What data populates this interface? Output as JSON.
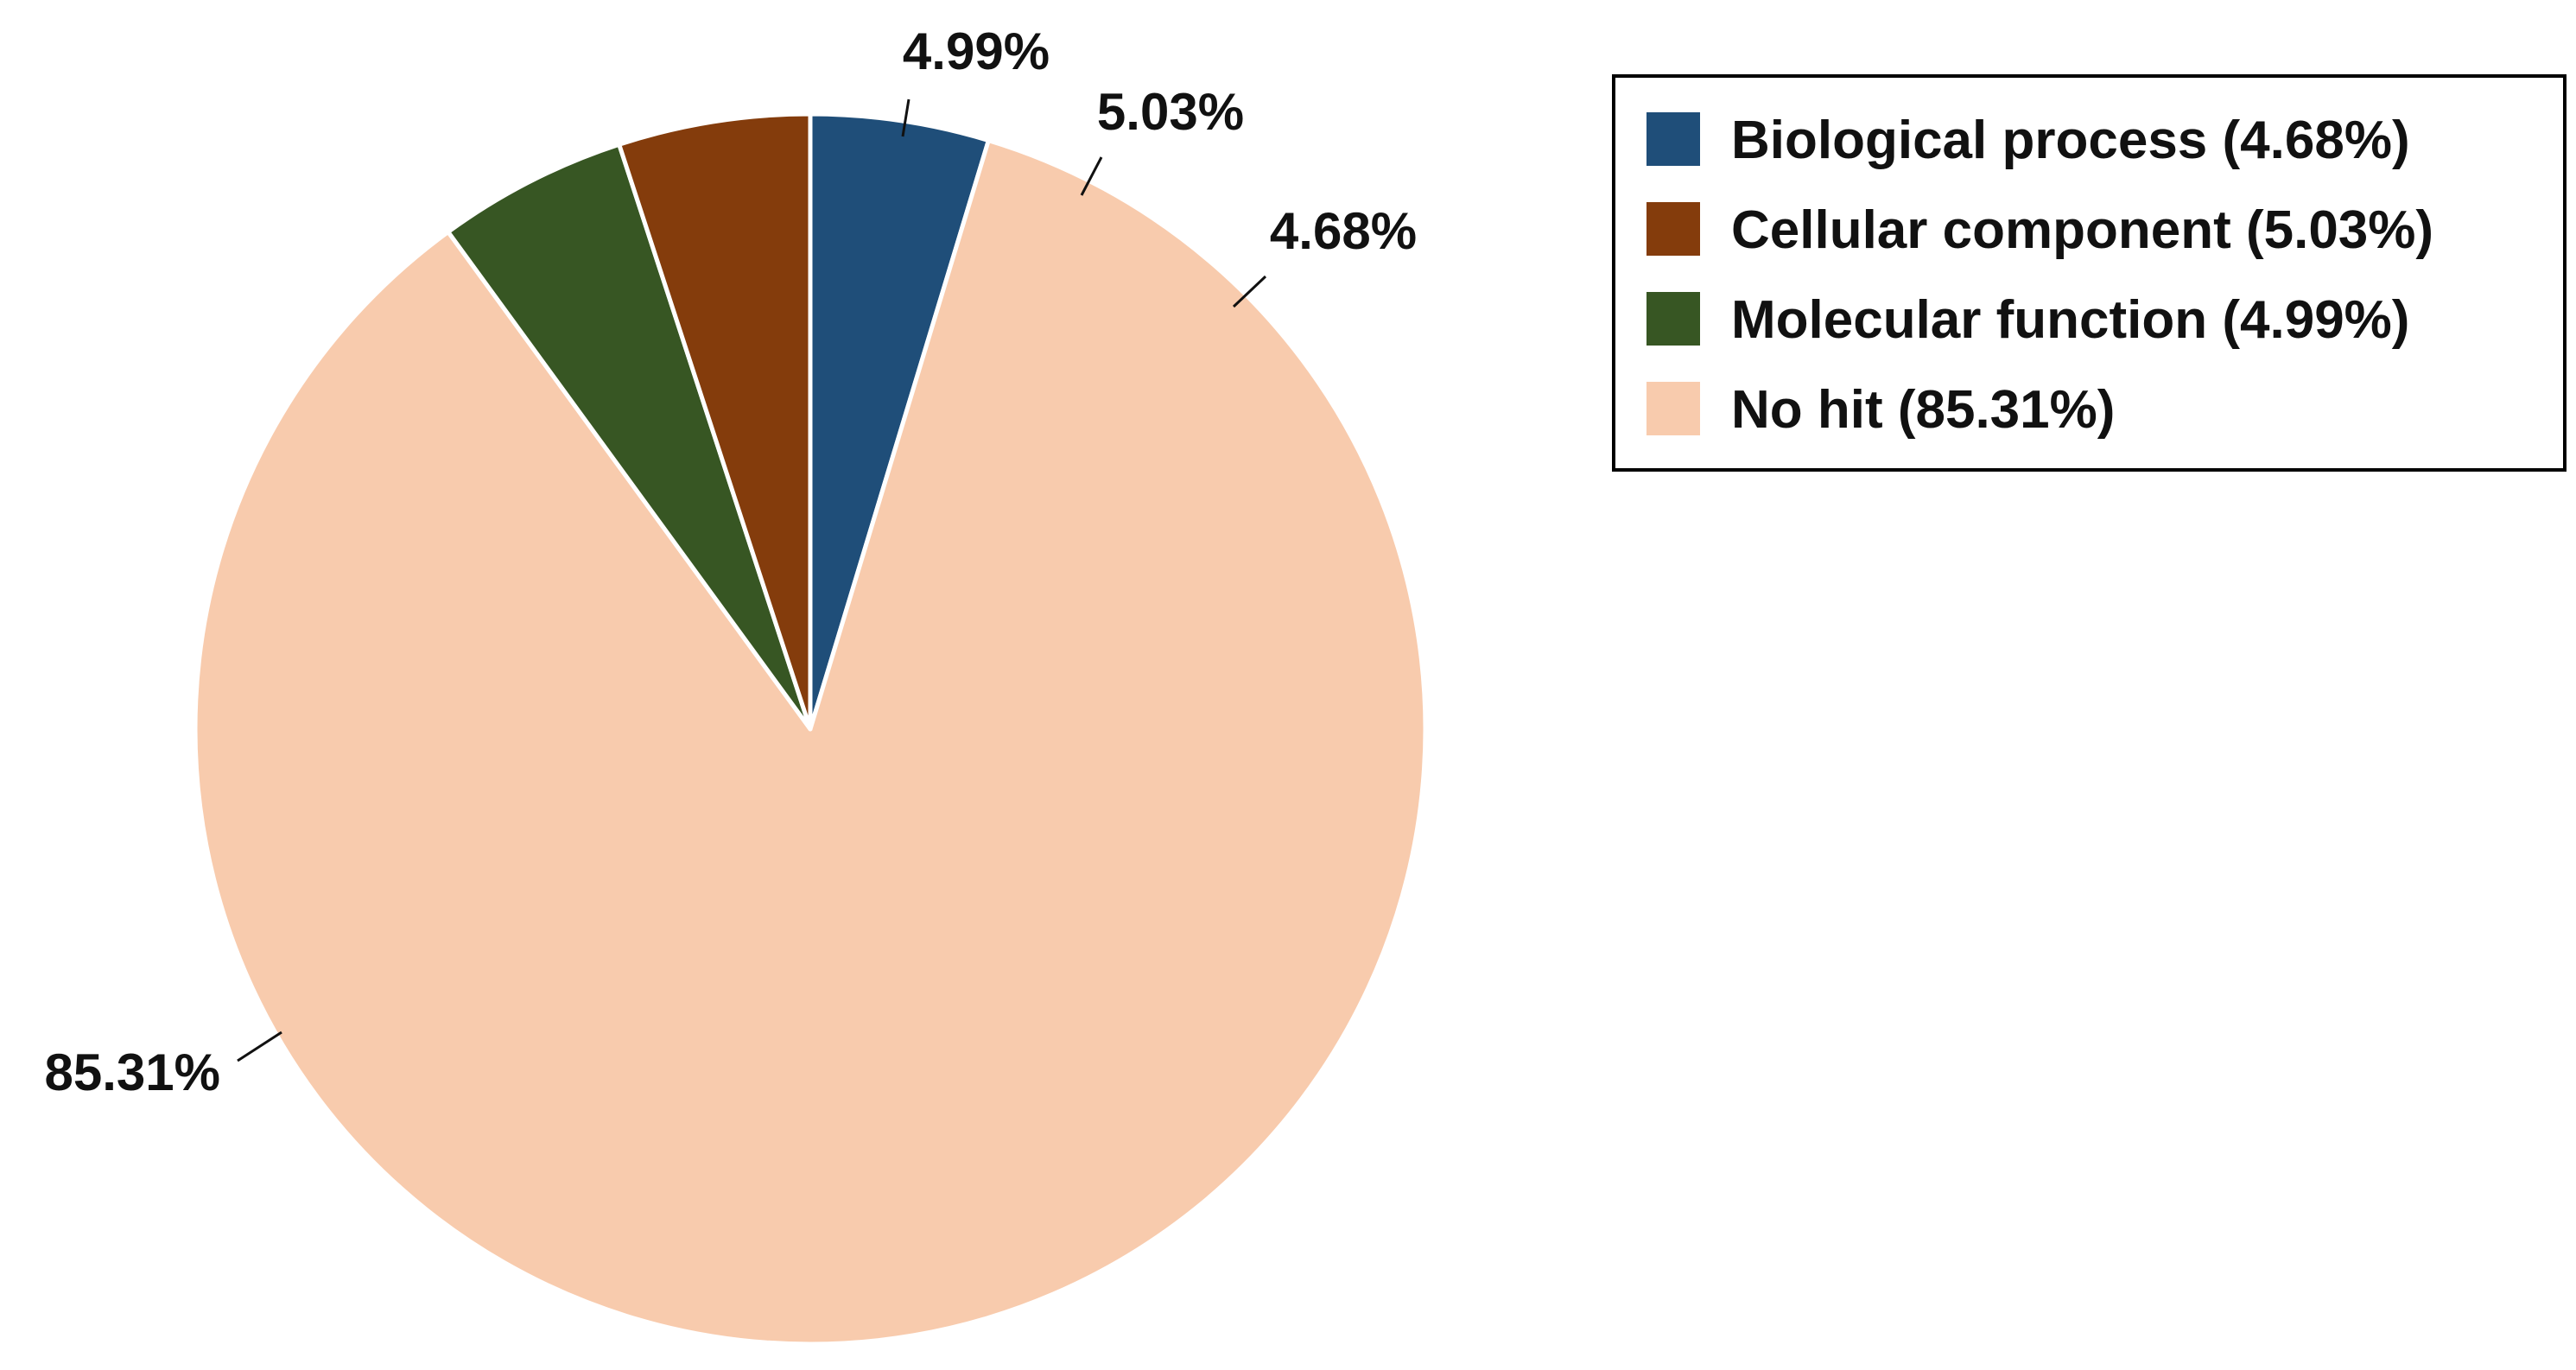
{
  "chart_data": {
    "type": "pie",
    "title": "",
    "start_angle_deg": 0,
    "direction": "clockwise_from_top",
    "slice_order": [
      "Biological process",
      "No hit",
      "Molecular function",
      "Cellular component"
    ],
    "slices": [
      {
        "label": "Biological process",
        "value": 4.68,
        "value_label": "4.68%",
        "color": "#1f4e79"
      },
      {
        "label": "Cellular component",
        "value": 5.03,
        "value_label": "5.03%",
        "color": "#843c0c"
      },
      {
        "label": "Molecular function",
        "value": 4.99,
        "value_label": "4.99%",
        "color": "#375623"
      },
      {
        "label": "No hit",
        "value": 85.31,
        "value_label": "85.31%",
        "color": "#f8cbad"
      }
    ],
    "legend": {
      "position": "top-right",
      "entries": [
        "Biological process (4.68%)",
        "Cellular component (5.03%)",
        "Molecular function (4.99%)",
        "No hit (85.31%)"
      ]
    }
  }
}
